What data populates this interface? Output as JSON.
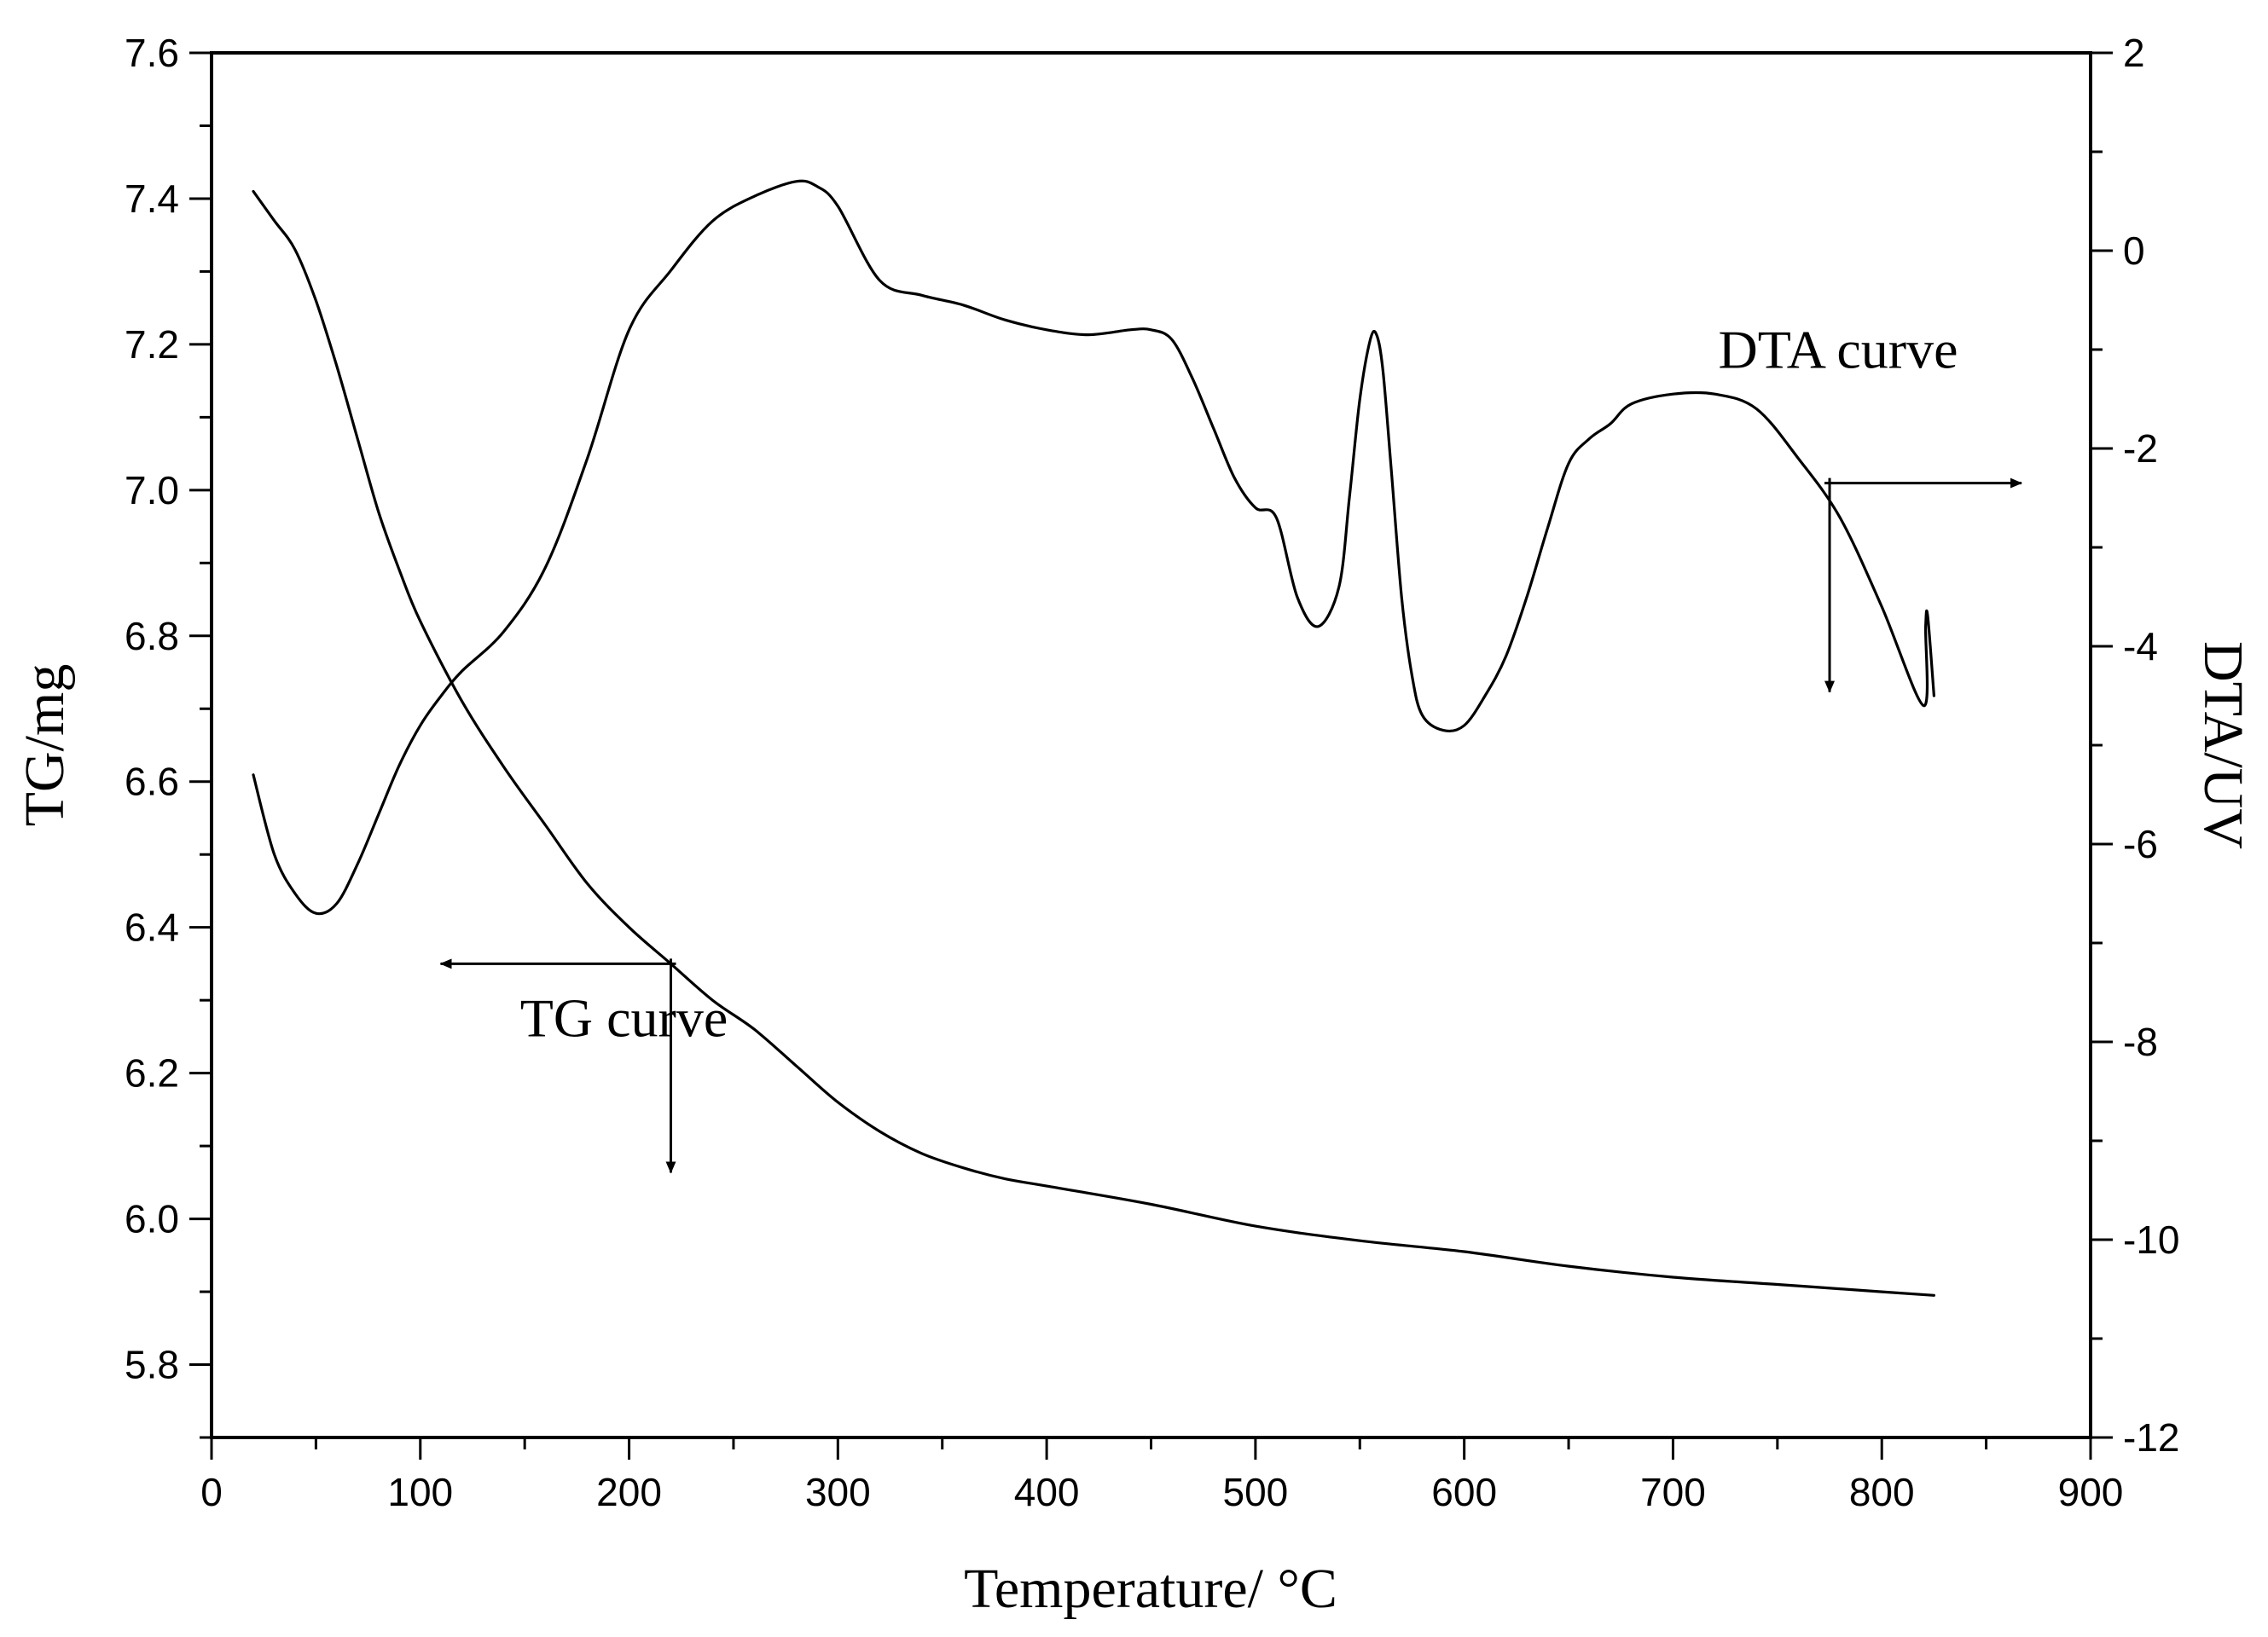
{
  "chart_data": {
    "type": "line",
    "title": "",
    "xlabel": "Temperature/ °C",
    "ylabel_left": "TG/mg",
    "ylabel_right": "DTA/UV",
    "xlim": [
      0,
      900
    ],
    "ylim_left": [
      5.7,
      7.6
    ],
    "ylim_right": [
      -12,
      2
    ],
    "x_ticks": [
      0,
      100,
      200,
      300,
      400,
      500,
      600,
      700,
      800,
      900
    ],
    "x_tick_labels": [
      "0",
      "100",
      "200",
      "300",
      "400",
      "500",
      "600",
      "700",
      "800",
      "900"
    ],
    "y_left_ticks": [
      5.8,
      6.0,
      6.2,
      6.4,
      6.6,
      6.8,
      7.0,
      7.2,
      7.4,
      7.6
    ],
    "y_left_tick_labels": [
      "5.8",
      "6.0",
      "6.2",
      "6.4",
      "6.6",
      "6.8",
      "7.0",
      "7.2",
      "7.4",
      "7.6"
    ],
    "y_right_ticks": [
      -12,
      -10,
      -8,
      -6,
      -4,
      -2,
      0,
      2
    ],
    "y_right_tick_labels": [
      "-12",
      "-10",
      "-8",
      "-6",
      "-4",
      "-2",
      "0",
      "2"
    ],
    "grid": false,
    "series": [
      {
        "name": "TG curve",
        "axis": "left",
        "x": [
          20,
          30,
          40,
          50,
          60,
          70,
          80,
          90,
          100,
          120,
          140,
          160,
          180,
          200,
          220,
          240,
          260,
          280,
          300,
          320,
          340,
          360,
          380,
          400,
          450,
          500,
          550,
          600,
          650,
          700,
          750,
          800,
          825
        ],
        "values": [
          7.41,
          7.37,
          7.33,
          7.26,
          7.17,
          7.07,
          6.97,
          6.89,
          6.82,
          6.71,
          6.62,
          6.54,
          6.46,
          6.4,
          6.35,
          6.3,
          6.26,
          6.21,
          6.16,
          6.12,
          6.09,
          6.07,
          6.055,
          6.045,
          6.02,
          5.99,
          5.97,
          5.955,
          5.935,
          5.92,
          5.91,
          5.9,
          5.895
        ]
      },
      {
        "name": "DTA curve",
        "axis": "right",
        "x": [
          20,
          30,
          40,
          50,
          60,
          70,
          80,
          90,
          100,
          110,
          120,
          140,
          160,
          180,
          200,
          220,
          240,
          260,
          280,
          290,
          300,
          320,
          340,
          360,
          380,
          400,
          420,
          440,
          450,
          460,
          470,
          480,
          490,
          500,
          510,
          520,
          530,
          540,
          545,
          550,
          555,
          558,
          561,
          565,
          570,
          575,
          580,
          590,
          600,
          610,
          620,
          630,
          640,
          650,
          660,
          670,
          680,
          700,
          720,
          740,
          760,
          780,
          800,
          820,
          821,
          822,
          825
        ],
        "values": [
          -5.3,
          -6.1,
          -6.5,
          -6.7,
          -6.6,
          -6.2,
          -5.7,
          -5.2,
          -4.8,
          -4.5,
          -4.25,
          -3.85,
          -3.2,
          -2.1,
          -0.8,
          -0.2,
          0.3,
          0.55,
          0.7,
          0.65,
          0.45,
          -0.3,
          -0.45,
          -0.55,
          -0.7,
          -0.8,
          -0.85,
          -0.8,
          -0.8,
          -0.9,
          -1.3,
          -1.8,
          -2.3,
          -2.6,
          -2.7,
          -3.5,
          -3.8,
          -3.4,
          -2.5,
          -1.5,
          -0.9,
          -0.85,
          -1.2,
          -2.2,
          -3.5,
          -4.3,
          -4.7,
          -4.85,
          -4.8,
          -4.5,
          -4.1,
          -3.5,
          -2.8,
          -2.15,
          -1.9,
          -1.75,
          -1.55,
          -1.45,
          -1.45,
          -1.6,
          -2.1,
          -2.7,
          -3.6,
          -4.6,
          -3.8,
          -3.7,
          -4.5
        ]
      }
    ],
    "annotations": [
      {
        "text": "TG curve",
        "x": 220,
        "y": 6.35,
        "axis": "left",
        "arrows": [
          "left",
          "down"
        ]
      },
      {
        "text": "DTA curve",
        "x": 775,
        "y": -2.35,
        "axis": "right",
        "arrows": [
          "right",
          "down"
        ]
      }
    ],
    "legend": "none"
  }
}
